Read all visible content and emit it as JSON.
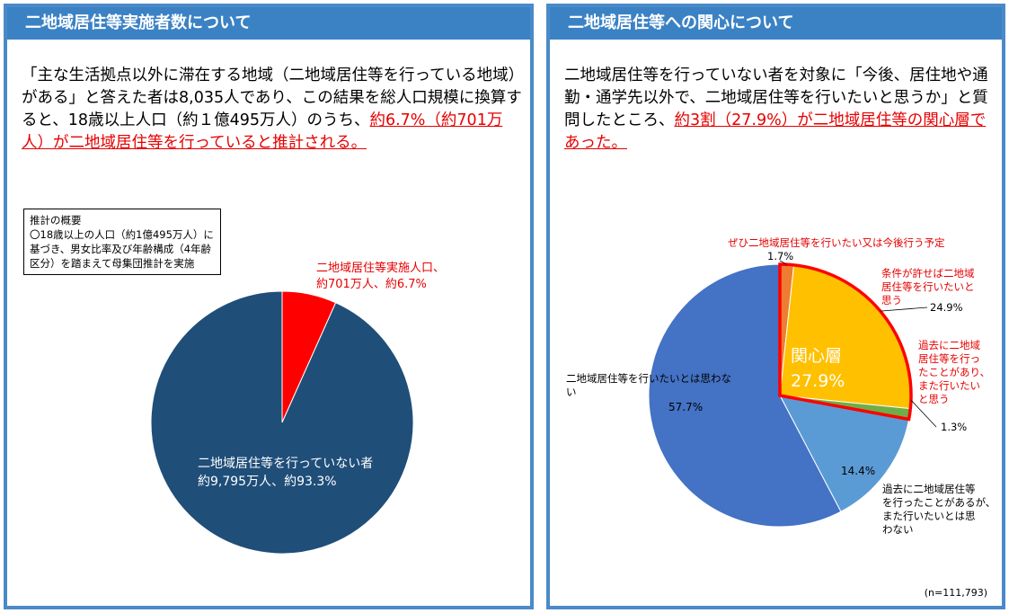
{
  "left": {
    "title": "二地域居住等実施者数について",
    "lead_black": "「主な生活拠点以外に滞在する地域（二地域居住等を行っている地域）がある」と答えた者は8,035人であり、この結果を総人口規模に換算すると、18歳以上人口（約１億495万人）のうち、",
    "lead_red": "約6.7%（約701万人）が二地域居住等を行っていると推計される。",
    "note_title": "推計の概要",
    "note_body": "〇18歳以上の人口（約1億495万人）に基づき、男女比率及び年齢構成（4年齢区分）を踏まえて母集団推計を実施"
  },
  "right": {
    "title": "二地域居住等への関心について",
    "lead_black": "二地域居住等を行っていない者を対象に「今後、居住地や通勤・通学先以外で、二地域居住等を行いたいと思うか」と質問したところ、",
    "lead_red": "約3割（27.9%）が二地域居住等の関心層であった。",
    "interest_label": "関心層",
    "interest_value": "27.9%",
    "sample": "(n=111,793)"
  },
  "chart_data": [
    {
      "type": "pie",
      "title": "",
      "slices": [
        {
          "label_line1": "二地域居住等実施人口、",
          "label_line2": "約701万人、約6.7%",
          "value": 6.7,
          "color": "#ff0000"
        },
        {
          "label_line1": "二地域居住等を行っていない者",
          "label_line2": "約9,795万人、約93.3%",
          "value": 93.3,
          "color": "#1f4e79"
        }
      ]
    },
    {
      "type": "pie",
      "title": "",
      "slices": [
        {
          "label": "ぜひ二地域居住等を行いたい又は今後行う予定",
          "value": 1.7,
          "value_label": "1.7%",
          "color": "#ed7d31"
        },
        {
          "label": "条件が許せば二地域居住等を行いたいと思う",
          "value": 24.9,
          "value_label": "24.9%",
          "color": "#ffc000"
        },
        {
          "label": "過去に二地域居住等を行ったことがあり、また行いたいと思う",
          "value": 1.3,
          "value_label": "1.3%",
          "color": "#70ad47"
        },
        {
          "label": "過去に二地域居住等を行ったことがあるが、また行いたいとは思わない",
          "value": 14.4,
          "value_label": "14.4%",
          "color": "#5b9bd5"
        },
        {
          "label": "二地域居住等を行いたいとは思わない",
          "value": 57.7,
          "value_label": "57.7%",
          "color": "#4472c4"
        }
      ]
    }
  ]
}
